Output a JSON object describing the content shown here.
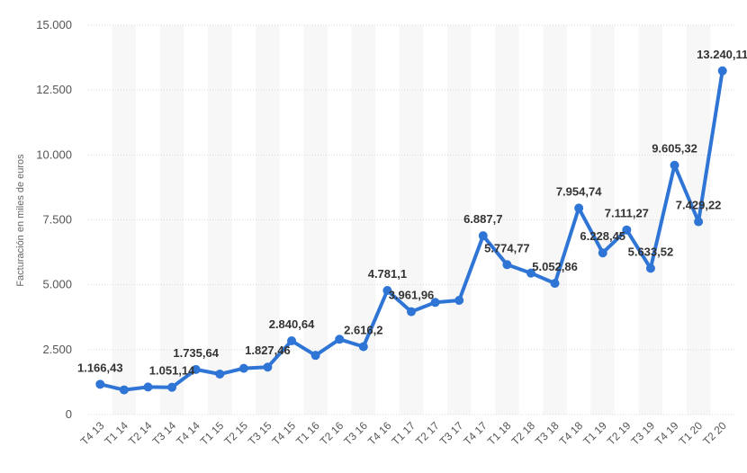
{
  "chart_data": {
    "type": "line",
    "ylabel": "Facturación en miles de euros",
    "xlabel": "",
    "ylim": [
      0,
      15000
    ],
    "yticks": [
      "0",
      "2.500",
      "5.000",
      "7.500",
      "10.000",
      "12.500",
      "15.000"
    ],
    "yticks_values": [
      0,
      2500,
      5000,
      7500,
      10000,
      12500,
      15000
    ],
    "grid": true,
    "line_color": "#2f75d6",
    "categories": [
      "T4 13",
      "T1 14",
      "T2 14",
      "T3 14",
      "T4 14",
      "T1 15",
      "T2 15",
      "T3 15",
      "T4 15",
      "T1 16",
      "T2 16",
      "T3 16",
      "T4 16",
      "T1 17",
      "T2 17",
      "T3 17",
      "T4 17",
      "T1 18",
      "T2 18",
      "T3 18",
      "T4 18",
      "T1 19",
      "T2 19",
      "T3 19",
      "T4 19",
      "T1 20",
      "T2 20"
    ],
    "values": [
      1166.43,
      950,
      1060,
      1051.14,
      1735.64,
      1560,
      1780,
      1827.46,
      2840.64,
      2280,
      2900,
      2616.2,
      4781.1,
      3961.96,
      4320,
      4400,
      6887.7,
      5774.77,
      5450,
      5052.86,
      7954.74,
      6228.45,
      7111.27,
      5633.52,
      9605.32,
      7429.22,
      13240.11
    ],
    "data_labels": [
      "1.166,43",
      "",
      "",
      "1.051,14",
      "1.735,64",
      "",
      "",
      "1.827,46",
      "2.840,64",
      "",
      "",
      "2.616,2",
      "4.781,1",
      "3.961,96",
      "",
      "",
      "6.887,7",
      "5.774,77",
      "",
      "5.052,86",
      "7.954,74",
      "6.228,45",
      "7.111,27",
      "5.633,52",
      "9.605,32",
      "7.429,22",
      "13.240,11"
    ]
  }
}
